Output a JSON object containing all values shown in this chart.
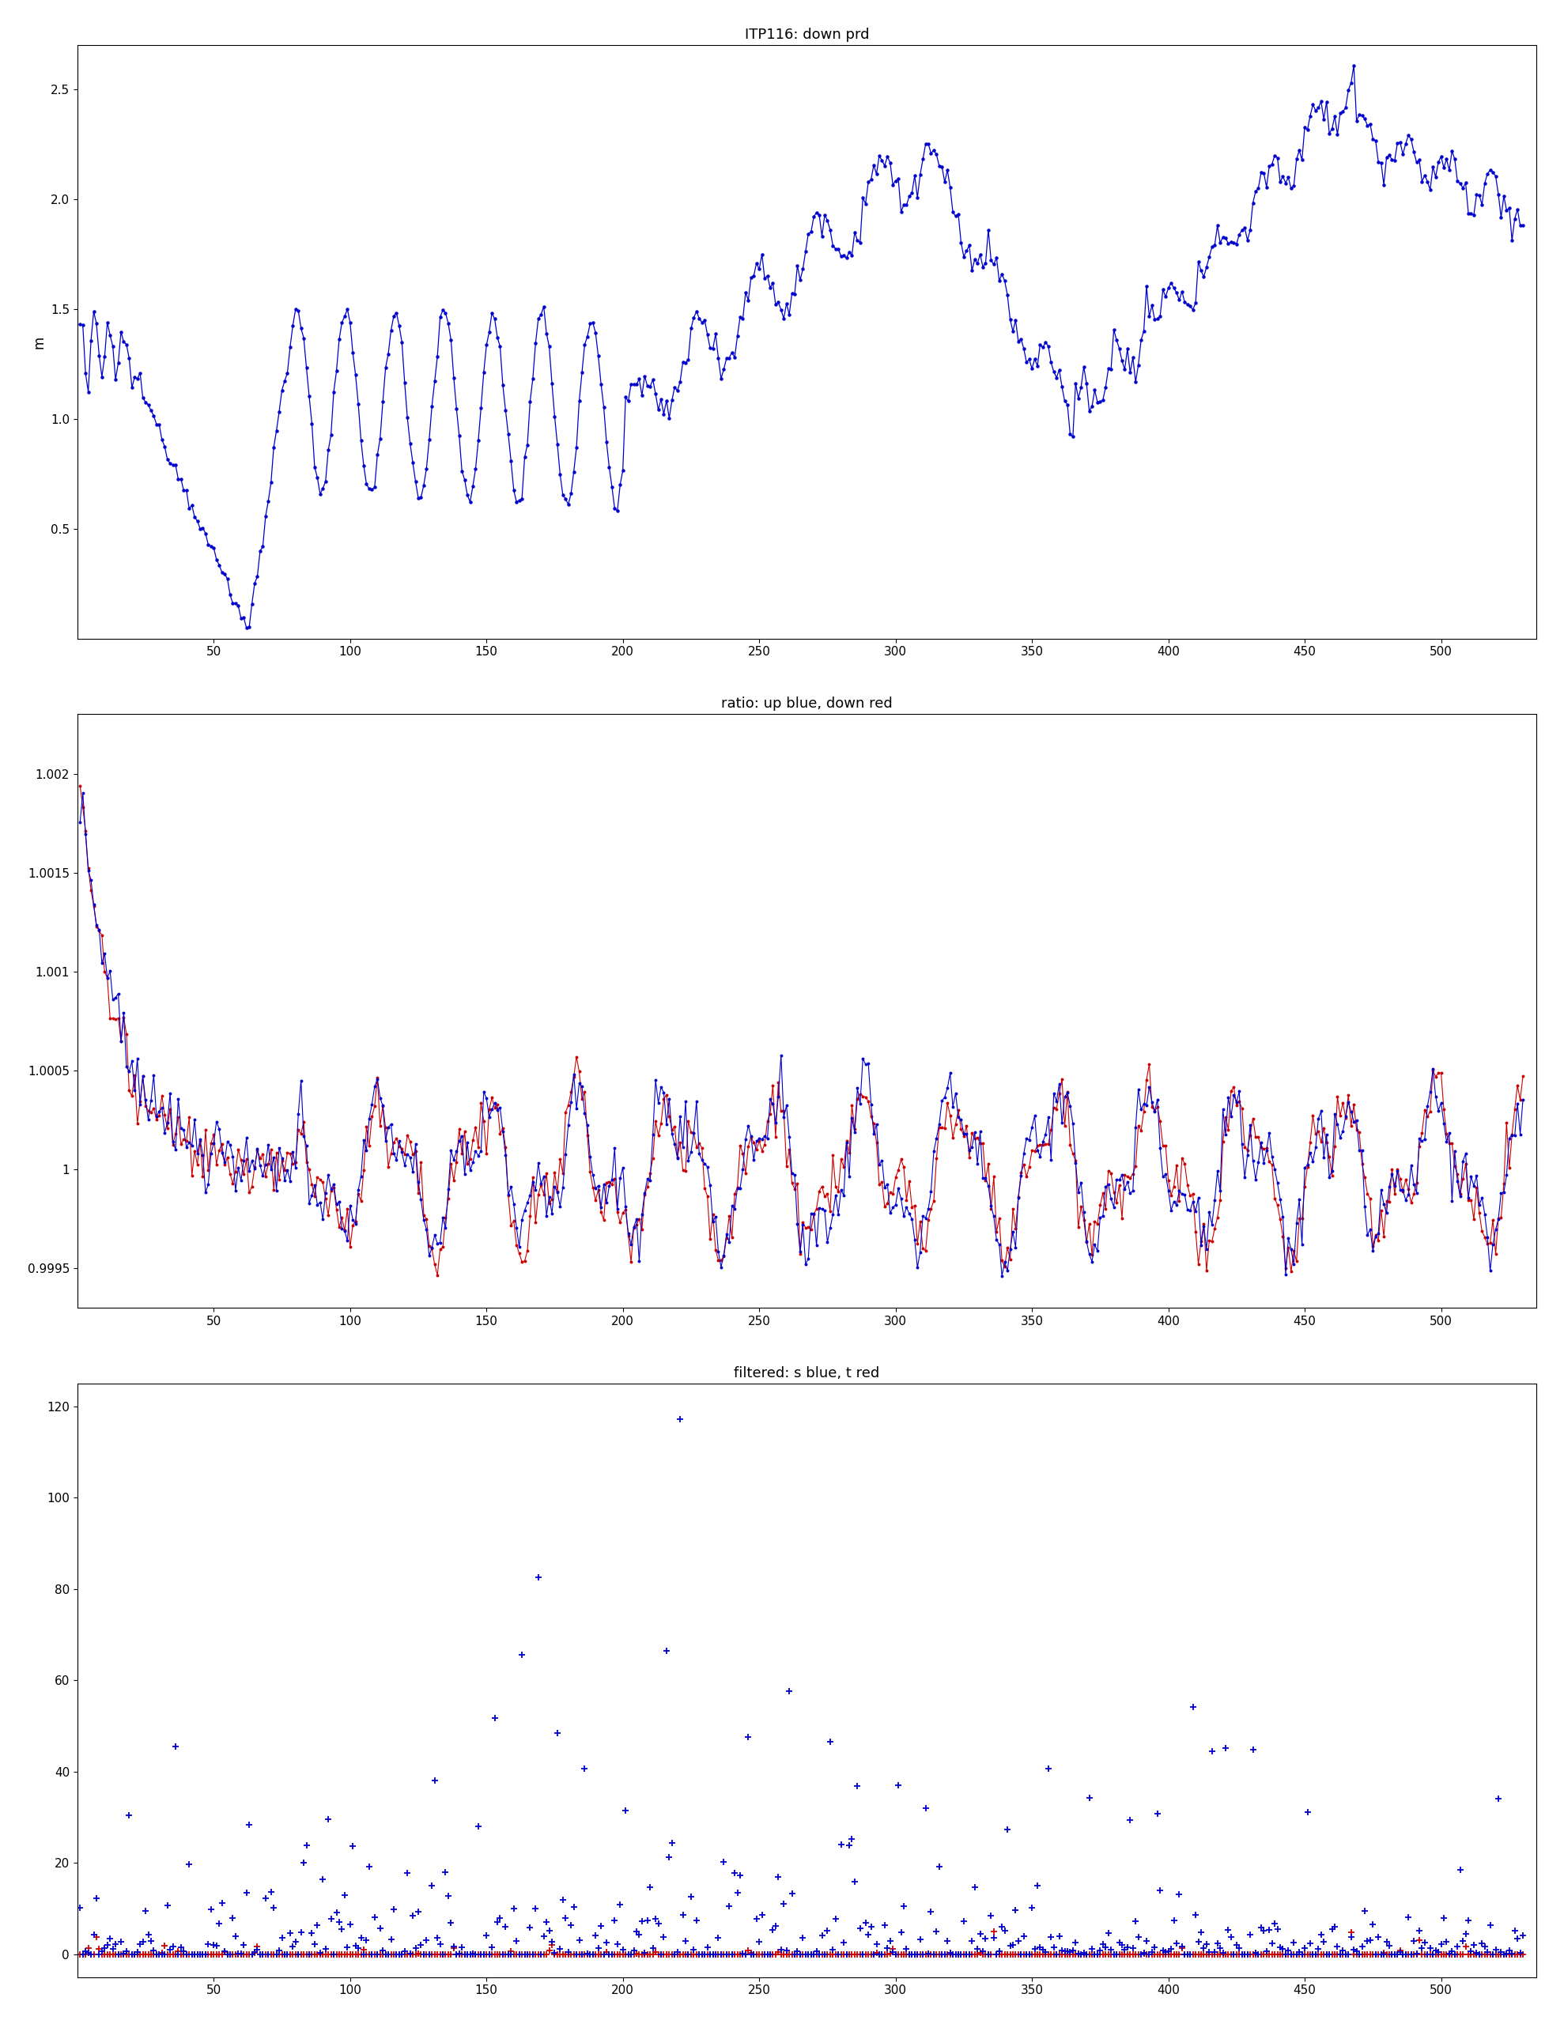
{
  "title1": "ITP116: down prd",
  "title2": "ratio: up blue, down red",
  "title3": "filtered: s blue, t red",
  "ylabel1": "m",
  "plot1_ylim": [
    0.0,
    2.7
  ],
  "plot2_ylim": [
    0.9993,
    1.0023
  ],
  "plot3_ylim": [
    -5,
    125
  ],
  "line_color_blue": "#0000cc",
  "line_color_red": "#cc0000",
  "bg_color": "#ffffff",
  "title_fontsize": 13,
  "label_fontsize": 12,
  "tick_fontsize": 11,
  "plot1_yticks": [
    0.5,
    1.0,
    1.5,
    2.0,
    2.5
  ],
  "plot2_yticks": [
    0.9995,
    1.0,
    1.0005,
    1.001,
    1.0015,
    1.002
  ],
  "plot2_yticklabels": [
    "0.9995",
    "1",
    "1.0005",
    "1.001",
    "1.0015",
    "1.002"
  ],
  "plot3_yticks": [
    0,
    20,
    40,
    60,
    80,
    100,
    120
  ],
  "xticks": [
    50,
    100,
    150,
    200,
    250,
    300,
    350,
    400,
    450,
    500
  ]
}
